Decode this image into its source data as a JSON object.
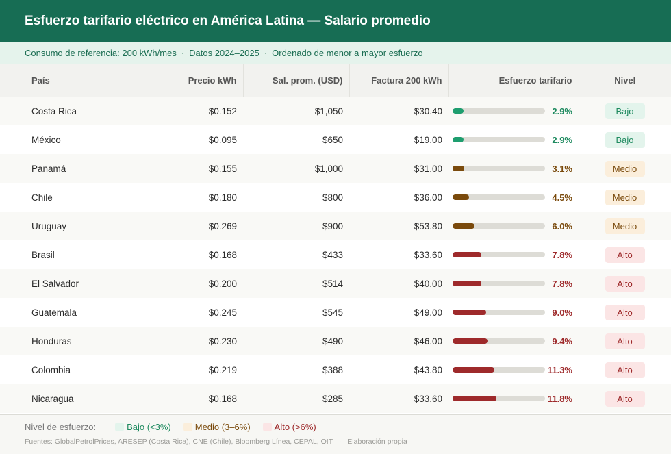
{
  "header": {
    "title": "Esfuerzo tarifario eléctrico en América Latina — Salario promedio"
  },
  "subheader": {
    "items": [
      "Consumo de referencia: 200 kWh/mes",
      "Datos 2024–2025",
      "Ordenado de menor a mayor esfuerzo"
    ],
    "separator": "·"
  },
  "colors": {
    "bajo": "#1e9e6f",
    "medio": "#7a4a0c",
    "alto": "#9e2a2b",
    "bajo_bg": "#e3f4ec",
    "medio_bg": "#fbeedb",
    "alto_bg": "#fbe5e5",
    "bajo_text": "#1e8a5f",
    "medio_text": "#7a4a0c",
    "alto_text": "#9e2a2b"
  },
  "chart_data": {
    "type": "table",
    "columns": [
      "País",
      "Precio kWh",
      "Sal. prom. (USD)",
      "Factura 200 kWh",
      "Esfuerzo tarifario",
      "Nivel"
    ],
    "bar_max_pct": 25,
    "rows": [
      {
        "pais": "Costa Rica",
        "precio": "$0.152",
        "salario": "$1,050",
        "factura": "$30.40",
        "esfuerzo": 2.9,
        "esfuerzo_label": "2.9%",
        "nivel": "Bajo",
        "nivel_key": "bajo"
      },
      {
        "pais": "México",
        "precio": "$0.095",
        "salario": "$650",
        "factura": "$19.00",
        "esfuerzo": 2.9,
        "esfuerzo_label": "2.9%",
        "nivel": "Bajo",
        "nivel_key": "bajo"
      },
      {
        "pais": "Panamá",
        "precio": "$0.155",
        "salario": "$1,000",
        "factura": "$31.00",
        "esfuerzo": 3.1,
        "esfuerzo_label": "3.1%",
        "nivel": "Medio",
        "nivel_key": "medio"
      },
      {
        "pais": "Chile",
        "precio": "$0.180",
        "salario": "$800",
        "factura": "$36.00",
        "esfuerzo": 4.5,
        "esfuerzo_label": "4.5%",
        "nivel": "Medio",
        "nivel_key": "medio"
      },
      {
        "pais": "Uruguay",
        "precio": "$0.269",
        "salario": "$900",
        "factura": "$53.80",
        "esfuerzo": 6.0,
        "esfuerzo_label": "6.0%",
        "nivel": "Medio",
        "nivel_key": "medio"
      },
      {
        "pais": "Brasil",
        "precio": "$0.168",
        "salario": "$433",
        "factura": "$33.60",
        "esfuerzo": 7.8,
        "esfuerzo_label": "7.8%",
        "nivel": "Alto",
        "nivel_key": "alto"
      },
      {
        "pais": "El Salvador",
        "precio": "$0.200",
        "salario": "$514",
        "factura": "$40.00",
        "esfuerzo": 7.8,
        "esfuerzo_label": "7.8%",
        "nivel": "Alto",
        "nivel_key": "alto"
      },
      {
        "pais": "Guatemala",
        "precio": "$0.245",
        "salario": "$545",
        "factura": "$49.00",
        "esfuerzo": 9.0,
        "esfuerzo_label": "9.0%",
        "nivel": "Alto",
        "nivel_key": "alto"
      },
      {
        "pais": "Honduras",
        "precio": "$0.230",
        "salario": "$490",
        "factura": "$46.00",
        "esfuerzo": 9.4,
        "esfuerzo_label": "9.4%",
        "nivel": "Alto",
        "nivel_key": "alto"
      },
      {
        "pais": "Colombia",
        "precio": "$0.219",
        "salario": "$388",
        "factura": "$43.80",
        "esfuerzo": 11.3,
        "esfuerzo_label": "11.3%",
        "nivel": "Alto",
        "nivel_key": "alto"
      },
      {
        "pais": "Nicaragua",
        "precio": "$0.168",
        "salario": "$285",
        "factura": "$33.60",
        "esfuerzo": 11.8,
        "esfuerzo_label": "11.8%",
        "nivel": "Alto",
        "nivel_key": "alto"
      }
    ]
  },
  "legend": {
    "label": "Nivel de esfuerzo:",
    "items": [
      {
        "key": "bajo",
        "label": "Bajo (<3%)"
      },
      {
        "key": "medio",
        "label": "Medio (3–6%)"
      },
      {
        "key": "alto",
        "label": "Alto (>6%)"
      }
    ]
  },
  "footer": {
    "sources": "Fuentes: GlobalPetrolPrices, ARESEP (Costa Rica), CNE (Chile), Bloomberg Línea, CEPAL, OIT",
    "separator": "·",
    "credit": "Elaboración propia"
  }
}
